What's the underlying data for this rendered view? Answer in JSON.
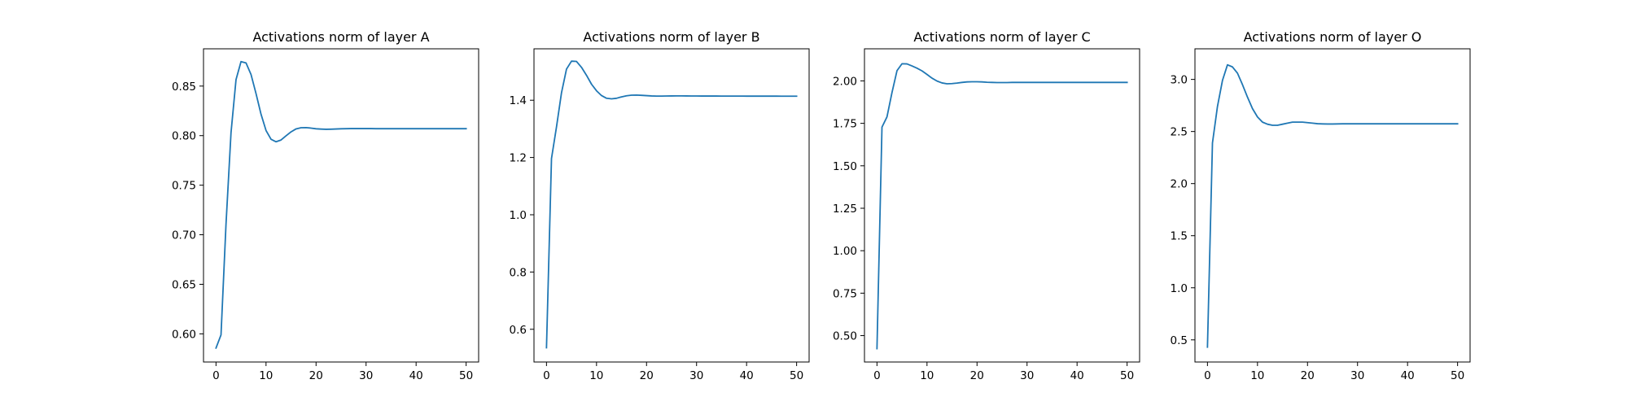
{
  "chart_data": [
    {
      "type": "line",
      "title": "Activations norm of layer A",
      "xlabel": "",
      "ylabel": "",
      "xlim": [
        -2.5,
        52.5
      ],
      "ylim": [
        0.5716,
        0.8876
      ],
      "xticks": [
        0,
        10,
        20,
        30,
        40,
        50
      ],
      "yticks": [
        0.6,
        0.65,
        0.7,
        0.75,
        0.8,
        0.85
      ],
      "ytick_labels": [
        "0.60",
        "0.65",
        "0.70",
        "0.75",
        "0.80",
        "0.85"
      ],
      "grid": false,
      "color": "#1f77b4",
      "x": [
        0,
        1,
        2,
        3,
        4,
        5,
        6,
        7,
        8,
        9,
        10,
        11,
        12,
        13,
        14,
        15,
        16,
        17,
        18,
        19,
        20,
        21,
        22,
        23,
        24,
        25,
        26,
        27,
        28,
        29,
        30,
        31,
        32,
        33,
        34,
        35,
        36,
        37,
        38,
        39,
        40,
        41,
        42,
        43,
        44,
        45,
        46,
        47,
        48,
        49,
        50
      ],
      "y": [
        0.5857,
        0.5989,
        0.7107,
        0.8029,
        0.8565,
        0.8747,
        0.8733,
        0.8617,
        0.8424,
        0.8216,
        0.8052,
        0.7963,
        0.7938,
        0.7956,
        0.7998,
        0.8038,
        0.8068,
        0.808,
        0.8081,
        0.8076,
        0.8069,
        0.8066,
        0.8064,
        0.8065,
        0.8067,
        0.8069,
        0.807,
        0.8071,
        0.8071,
        0.8071,
        0.8071,
        0.8071,
        0.807,
        0.807,
        0.807,
        0.807,
        0.807,
        0.807,
        0.807,
        0.807,
        0.807,
        0.807,
        0.807,
        0.807,
        0.807,
        0.807,
        0.807,
        0.807,
        0.807,
        0.807,
        0.807
      ]
    },
    {
      "type": "line",
      "title": "Activations norm of layer B",
      "xlabel": "",
      "ylabel": "",
      "xlim": [
        -2.5,
        52.5
      ],
      "ylim": [
        0.4857,
        1.5796
      ],
      "xticks": [
        0,
        10,
        20,
        30,
        40,
        50
      ],
      "yticks": [
        0.6,
        0.8,
        1.0,
        1.2,
        1.4
      ],
      "ytick_labels": [
        "0.6",
        "0.8",
        "1.0",
        "1.2",
        "1.4"
      ],
      "grid": false,
      "color": "#1f77b4",
      "x": [
        0,
        1,
        2,
        3,
        4,
        5,
        6,
        7,
        8,
        9,
        10,
        11,
        12,
        13,
        14,
        15,
        16,
        17,
        18,
        19,
        20,
        21,
        22,
        23,
        24,
        25,
        26,
        27,
        28,
        29,
        30,
        31,
        32,
        33,
        34,
        35,
        36,
        37,
        38,
        39,
        40,
        41,
        42,
        43,
        44,
        45,
        46,
        47,
        48,
        49,
        50
      ],
      "y": [
        0.5354,
        1.1964,
        1.3067,
        1.426,
        1.5087,
        1.5364,
        1.5355,
        1.5149,
        1.487,
        1.456,
        1.433,
        1.4163,
        1.4069,
        1.4048,
        1.4068,
        1.4117,
        1.4154,
        1.4177,
        1.4181,
        1.4171,
        1.416,
        1.415,
        1.4145,
        1.4145,
        1.4148,
        1.415,
        1.4151,
        1.4151,
        1.415,
        1.4149,
        1.4148,
        1.4147,
        1.4147,
        1.4146,
        1.4146,
        1.4145,
        1.4145,
        1.4144,
        1.4144,
        1.4144,
        1.4143,
        1.4143,
        1.4143,
        1.4142,
        1.4142,
        1.4142,
        1.4142,
        1.4141,
        1.4141,
        1.4141,
        1.4141
      ]
    },
    {
      "type": "line",
      "title": "Activations norm of layer C",
      "xlabel": "",
      "ylabel": "",
      "xlim": [
        -2.5,
        52.5
      ],
      "ylim": [
        0.3446,
        2.1889
      ],
      "xticks": [
        0,
        10,
        20,
        30,
        40,
        50
      ],
      "yticks": [
        0.5,
        0.75,
        1.0,
        1.25,
        1.5,
        1.75,
        2.0
      ],
      "ytick_labels": [
        "0.50",
        "0.75",
        "1.00",
        "1.25",
        "1.50",
        "1.75",
        "2.00"
      ],
      "grid": false,
      "color": "#1f77b4",
      "x": [
        0,
        1,
        2,
        3,
        4,
        5,
        6,
        7,
        8,
        9,
        10,
        11,
        12,
        13,
        14,
        15,
        16,
        17,
        18,
        19,
        20,
        21,
        22,
        23,
        24,
        25,
        26,
        27,
        28,
        29,
        30,
        31,
        32,
        33,
        34,
        35,
        36,
        37,
        38,
        39,
        40,
        41,
        42,
        43,
        44,
        45,
        46,
        47,
        48,
        49,
        50
      ],
      "y": [
        0.423,
        1.728,
        1.788,
        1.931,
        2.06,
        2.101,
        2.1,
        2.088,
        2.075,
        2.059,
        2.038,
        2.016,
        1.999,
        1.988,
        1.983,
        1.984,
        1.987,
        1.991,
        1.994,
        1.995,
        1.995,
        1.994,
        1.992,
        1.991,
        1.99,
        1.99,
        1.99,
        1.991,
        1.991,
        1.991,
        1.991,
        1.991,
        1.991,
        1.991,
        1.991,
        1.991,
        1.991,
        1.991,
        1.991,
        1.991,
        1.991,
        1.991,
        1.991,
        1.991,
        1.991,
        1.991,
        1.991,
        1.991,
        1.991,
        1.991,
        1.991
      ]
    },
    {
      "type": "line",
      "title": "Activations norm of layer O",
      "xlabel": "",
      "ylabel": "",
      "xlim": [
        -2.5,
        52.5
      ],
      "ylim": [
        0.2875,
        3.2938
      ],
      "xticks": [
        0,
        10,
        20,
        30,
        40,
        50
      ],
      "yticks": [
        0.5,
        1.0,
        1.5,
        2.0,
        2.5,
        3.0
      ],
      "ytick_labels": [
        "0.5",
        "1.0",
        "1.5",
        "2.0",
        "2.5",
        "3.0"
      ],
      "grid": false,
      "color": "#1f77b4",
      "x": [
        0,
        1,
        2,
        3,
        4,
        5,
        6,
        7,
        8,
        9,
        10,
        11,
        12,
        13,
        14,
        15,
        16,
        17,
        18,
        19,
        20,
        21,
        22,
        23,
        24,
        25,
        26,
        27,
        28,
        29,
        30,
        31,
        32,
        33,
        34,
        35,
        36,
        37,
        38,
        39,
        40,
        41,
        42,
        43,
        44,
        45,
        46,
        47,
        48,
        49,
        50
      ],
      "y": [
        0.43,
        2.39,
        2.74,
        2.99,
        3.14,
        3.12,
        3.06,
        2.95,
        2.83,
        2.72,
        2.64,
        2.59,
        2.57,
        2.56,
        2.56,
        2.57,
        2.58,
        2.59,
        2.59,
        2.59,
        2.585,
        2.58,
        2.575,
        2.573,
        2.572,
        2.572,
        2.573,
        2.574,
        2.574,
        2.574,
        2.574,
        2.574,
        2.574,
        2.574,
        2.574,
        2.574,
        2.574,
        2.574,
        2.574,
        2.574,
        2.574,
        2.574,
        2.574,
        2.574,
        2.574,
        2.574,
        2.574,
        2.574,
        2.574,
        2.574,
        2.574
      ]
    }
  ]
}
